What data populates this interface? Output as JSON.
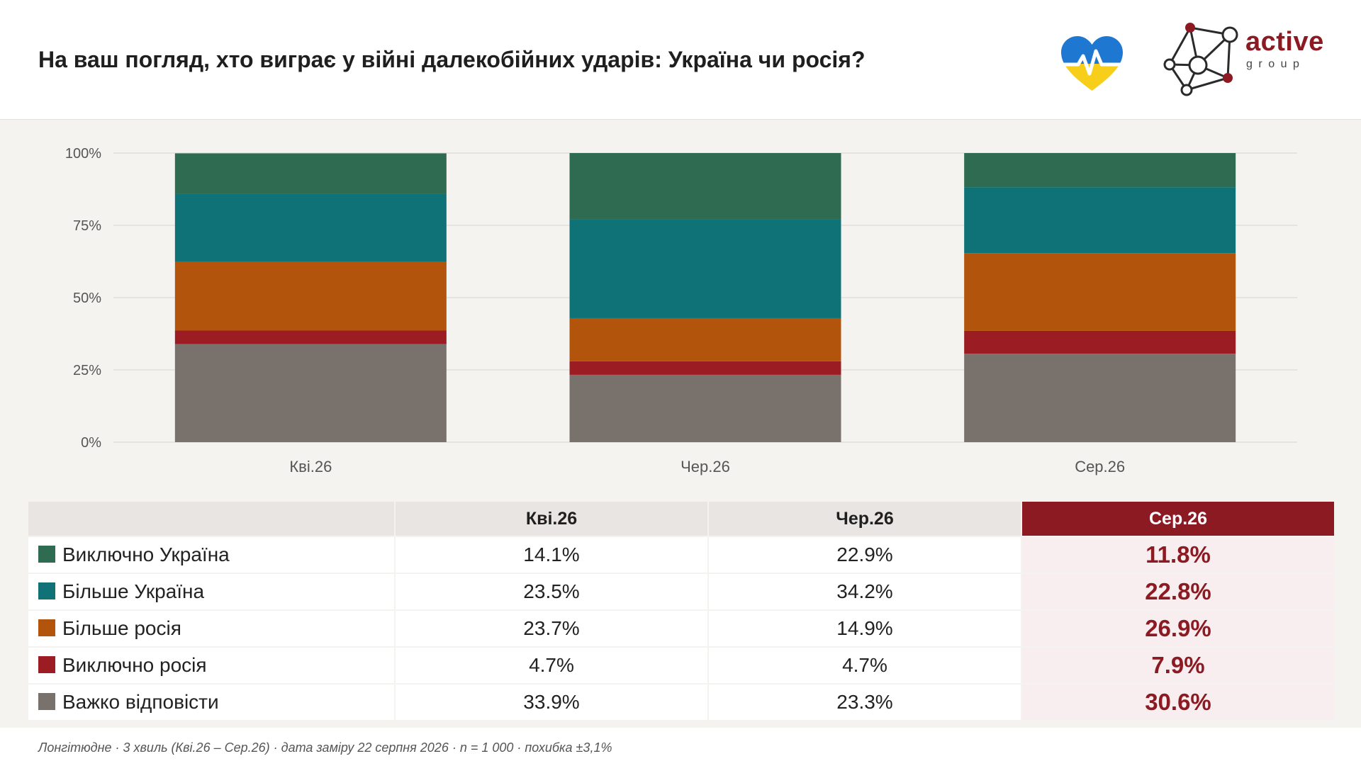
{
  "header": {
    "title": "На ваш погляд, хто виграє у війні далекобійних ударів: Україна чи росія?",
    "logo_heart_icon": "heart-ukraine-icon",
    "logo_word": "active",
    "logo_sub": "group"
  },
  "colors": {
    "accent": "#8c1a22",
    "panel_bg": "#f4f3f0",
    "s1": "#2e6b50",
    "s2": "#0f7276",
    "s3": "#b3540d",
    "s4": "#9b1c22",
    "s5": "#79716b"
  },
  "chart_data": {
    "type": "bar",
    "stacked": true,
    "categories": [
      "Кві.26",
      "Чер.26",
      "Сер.26"
    ],
    "y_ticks": [
      "0%",
      "25%",
      "50%",
      "75%",
      "100%"
    ],
    "ylim": [
      0,
      100
    ],
    "grid": true,
    "series": [
      {
        "name": "Важко відповісти",
        "color": "#79716b",
        "values": [
          33.9,
          23.3,
          30.6
        ]
      },
      {
        "name": "Виключно росія",
        "color": "#9b1c22",
        "values": [
          4.7,
          4.7,
          7.9
        ]
      },
      {
        "name": "Більше росія",
        "color": "#b3540d",
        "values": [
          23.7,
          14.9,
          26.9
        ]
      },
      {
        "name": "Більше Україна",
        "color": "#0f7276",
        "values": [
          23.5,
          34.2,
          22.8
        ]
      },
      {
        "name": "Виключно Україна",
        "color": "#2e6b50",
        "values": [
          14.1,
          22.9,
          11.8
        ]
      }
    ]
  },
  "table": {
    "columns": [
      "Кві.26",
      "Чер.26",
      "Сер.26"
    ],
    "rows": [
      {
        "label": "Виключно Україна",
        "values": [
          "14.1%",
          "22.9%",
          "11.8%"
        ]
      },
      {
        "label": "Більше Україна",
        "values": [
          "23.5%",
          "34.2%",
          "22.8%"
        ]
      },
      {
        "label": "Більше росія",
        "values": [
          "23.7%",
          "14.9%",
          "26.9%"
        ]
      },
      {
        "label": "Виключно росія",
        "values": [
          "4.7%",
          "4.7%",
          "7.9%"
        ]
      },
      {
        "label": "Важко відповісти",
        "values": [
          "33.9%",
          "23.3%",
          "30.6%"
        ]
      }
    ]
  },
  "footnote": "Лонгітюдне · 3 хвиль (Кві.26 – Сер.26) · дата заміру 22 серпня 2026 · n = 1 000 · похибка ±3,1%"
}
